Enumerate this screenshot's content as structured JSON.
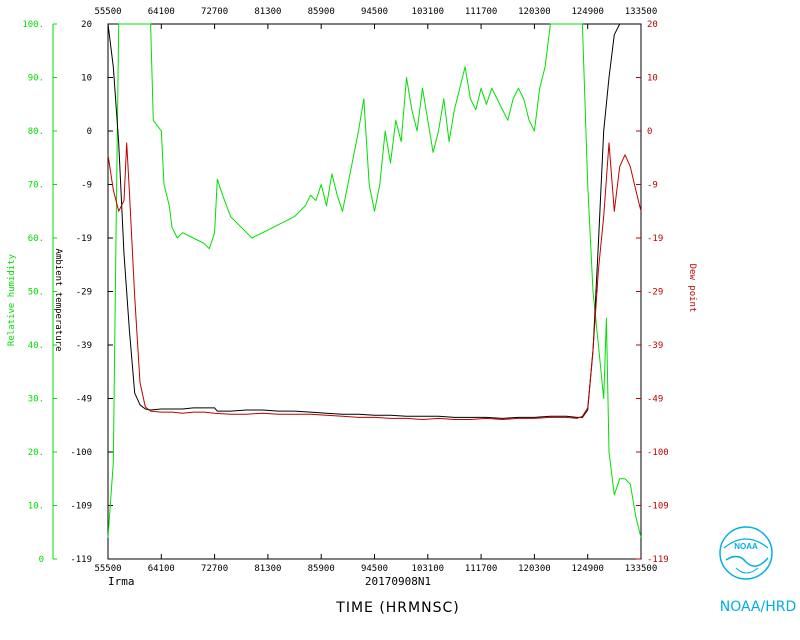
{
  "chart_data": {
    "type": "line",
    "x_tick_labels": [
      "55500",
      "64100",
      "72700",
      "81300",
      "85900",
      "94500",
      "103100",
      "111700",
      "120300",
      "124900",
      "133500"
    ],
    "x_top_tick_labels": [
      "55500",
      "64100",
      "72700",
      "81300",
      "85900",
      "94500",
      "103100",
      "111700",
      "120300",
      "124900",
      "133500"
    ],
    "xlabel": "TIME (HRMNSC)",
    "flight_id": "20170908N1",
    "storm_name": "Irma",
    "y_rh": {
      "label": "Relative humidity",
      "ticks": [
        "0",
        "10.",
        "20.",
        "30.",
        "40.",
        "50.",
        "60.",
        "70.",
        "80.",
        "90.",
        "100."
      ],
      "ylim": [
        0,
        100
      ]
    },
    "y_temp": {
      "label": "Ambient temperature",
      "ticks": [
        "-119",
        "-109",
        "-100",
        "-49",
        "-39",
        "-29",
        "-19",
        "-9",
        "0",
        "10",
        "20"
      ],
      "ylim": [
        -119,
        20
      ]
    },
    "y_dew": {
      "label": "Dew point",
      "ticks": [
        "-119",
        "-109",
        "-100",
        "-49",
        "-39",
        "-29",
        "-19",
        "-9",
        "0",
        "10",
        "20"
      ],
      "ylim": [
        -119,
        20
      ]
    },
    "series": [
      {
        "name": "Relative humidity",
        "color": "#00e000",
        "axis": "rh",
        "values": [
          [
            0,
            4
          ],
          [
            0.01,
            18
          ],
          [
            0.015,
            60
          ],
          [
            0.02,
            100
          ],
          [
            0.08,
            100
          ],
          [
            0.085,
            82
          ],
          [
            0.1,
            80
          ],
          [
            0.105,
            70
          ],
          [
            0.115,
            66
          ],
          [
            0.12,
            62
          ],
          [
            0.13,
            60
          ],
          [
            0.14,
            61
          ],
          [
            0.16,
            60
          ],
          [
            0.18,
            59
          ],
          [
            0.19,
            58
          ],
          [
            0.2,
            61
          ],
          [
            0.205,
            71
          ],
          [
            0.215,
            68
          ],
          [
            0.23,
            64
          ],
          [
            0.25,
            62
          ],
          [
            0.27,
            60
          ],
          [
            0.29,
            61
          ],
          [
            0.31,
            62
          ],
          [
            0.33,
            63
          ],
          [
            0.35,
            64
          ],
          [
            0.37,
            66
          ],
          [
            0.38,
            68
          ],
          [
            0.39,
            67
          ],
          [
            0.4,
            70
          ],
          [
            0.41,
            66
          ],
          [
            0.42,
            72
          ],
          [
            0.43,
            68
          ],
          [
            0.44,
            65
          ],
          [
            0.45,
            70
          ],
          [
            0.46,
            75
          ],
          [
            0.47,
            80
          ],
          [
            0.48,
            86
          ],
          [
            0.49,
            70
          ],
          [
            0.5,
            65
          ],
          [
            0.51,
            70
          ],
          [
            0.52,
            80
          ],
          [
            0.53,
            74
          ],
          [
            0.54,
            82
          ],
          [
            0.55,
            78
          ],
          [
            0.56,
            90
          ],
          [
            0.57,
            84
          ],
          [
            0.58,
            80
          ],
          [
            0.59,
            88
          ],
          [
            0.6,
            82
          ],
          [
            0.61,
            76
          ],
          [
            0.62,
            80
          ],
          [
            0.63,
            86
          ],
          [
            0.64,
            78
          ],
          [
            0.65,
            84
          ],
          [
            0.66,
            88
          ],
          [
            0.67,
            92
          ],
          [
            0.68,
            86
          ],
          [
            0.69,
            84
          ],
          [
            0.7,
            88
          ],
          [
            0.71,
            85
          ],
          [
            0.72,
            88
          ],
          [
            0.73,
            86
          ],
          [
            0.74,
            84
          ],
          [
            0.75,
            82
          ],
          [
            0.76,
            86
          ],
          [
            0.77,
            88
          ],
          [
            0.78,
            86
          ],
          [
            0.79,
            82
          ],
          [
            0.8,
            80
          ],
          [
            0.81,
            88
          ],
          [
            0.82,
            92
          ],
          [
            0.83,
            100
          ],
          [
            0.89,
            100
          ],
          [
            0.9,
            70
          ],
          [
            0.91,
            50
          ],
          [
            0.92,
            40
          ],
          [
            0.93,
            30
          ],
          [
            0.935,
            45
          ],
          [
            0.94,
            20
          ],
          [
            0.95,
            12
          ],
          [
            0.96,
            15
          ],
          [
            0.97,
            15
          ],
          [
            0.98,
            14
          ],
          [
            0.99,
            8
          ],
          [
            1,
            4
          ]
        ]
      },
      {
        "name": "Ambient temperature",
        "color": "#000000",
        "axis": "temp",
        "values": [
          [
            0,
            20
          ],
          [
            0.01,
            12
          ],
          [
            0.02,
            -2
          ],
          [
            0.03,
            -22
          ],
          [
            0.04,
            -36
          ],
          [
            0.05,
            -48
          ],
          [
            0.06,
            -55
          ],
          [
            0.07,
            -59
          ],
          [
            0.08,
            -60
          ],
          [
            0.1,
            -59
          ],
          [
            0.12,
            -59
          ],
          [
            0.14,
            -59
          ],
          [
            0.16,
            -58
          ],
          [
            0.18,
            -58
          ],
          [
            0.2,
            -58
          ],
          [
            0.205,
            -61
          ],
          [
            0.23,
            -61
          ],
          [
            0.26,
            -60
          ],
          [
            0.29,
            -60
          ],
          [
            0.32,
            -61
          ],
          [
            0.35,
            -61
          ],
          [
            0.38,
            -62
          ],
          [
            0.41,
            -63
          ],
          [
            0.44,
            -64
          ],
          [
            0.47,
            -64
          ],
          [
            0.5,
            -65
          ],
          [
            0.53,
            -65
          ],
          [
            0.56,
            -66
          ],
          [
            0.59,
            -66
          ],
          [
            0.62,
            -66
          ],
          [
            0.65,
            -67
          ],
          [
            0.68,
            -67
          ],
          [
            0.71,
            -67
          ],
          [
            0.74,
            -68
          ],
          [
            0.77,
            -67
          ],
          [
            0.8,
            -67
          ],
          [
            0.83,
            -66
          ],
          [
            0.86,
            -66
          ],
          [
            0.88,
            -67
          ],
          [
            0.89,
            -67
          ],
          [
            0.9,
            -60
          ],
          [
            0.91,
            -40
          ],
          [
            0.92,
            -20
          ],
          [
            0.93,
            0
          ],
          [
            0.94,
            10
          ],
          [
            0.95,
            18
          ],
          [
            0.96,
            20
          ],
          [
            1,
            20
          ]
        ]
      },
      {
        "name": "Dew point",
        "color": "#c00000",
        "axis": "dew",
        "values": [
          [
            0,
            -4
          ],
          [
            0.01,
            -10
          ],
          [
            0.02,
            -14
          ],
          [
            0.03,
            -12
          ],
          [
            0.035,
            -2
          ],
          [
            0.04,
            -10
          ],
          [
            0.05,
            -30
          ],
          [
            0.06,
            -46
          ],
          [
            0.07,
            -57
          ],
          [
            0.08,
            -61
          ],
          [
            0.1,
            -62
          ],
          [
            0.12,
            -62
          ],
          [
            0.14,
            -63
          ],
          [
            0.16,
            -62
          ],
          [
            0.18,
            -62
          ],
          [
            0.2,
            -63
          ],
          [
            0.23,
            -64
          ],
          [
            0.26,
            -64
          ],
          [
            0.29,
            -63
          ],
          [
            0.32,
            -64
          ],
          [
            0.35,
            -64
          ],
          [
            0.38,
            -64
          ],
          [
            0.41,
            -65
          ],
          [
            0.44,
            -66
          ],
          [
            0.47,
            -67
          ],
          [
            0.5,
            -67
          ],
          [
            0.53,
            -68
          ],
          [
            0.56,
            -68
          ],
          [
            0.59,
            -69
          ],
          [
            0.62,
            -68
          ],
          [
            0.65,
            -69
          ],
          [
            0.68,
            -69
          ],
          [
            0.71,
            -68
          ],
          [
            0.74,
            -69
          ],
          [
            0.77,
            -68
          ],
          [
            0.8,
            -68
          ],
          [
            0.83,
            -67
          ],
          [
            0.86,
            -67
          ],
          [
            0.88,
            -68
          ],
          [
            0.89,
            -66
          ],
          [
            0.9,
            -58
          ],
          [
            0.91,
            -40
          ],
          [
            0.92,
            -25
          ],
          [
            0.93,
            -15
          ],
          [
            0.94,
            -2
          ],
          [
            0.95,
            -14
          ],
          [
            0.96,
            -6
          ],
          [
            0.97,
            -4
          ],
          [
            0.98,
            -6
          ],
          [
            0.99,
            -10
          ],
          [
            1,
            -14
          ]
        ]
      }
    ]
  },
  "footer": {
    "agency": "NOAA/HRD",
    "logo_text": "NOAA"
  }
}
